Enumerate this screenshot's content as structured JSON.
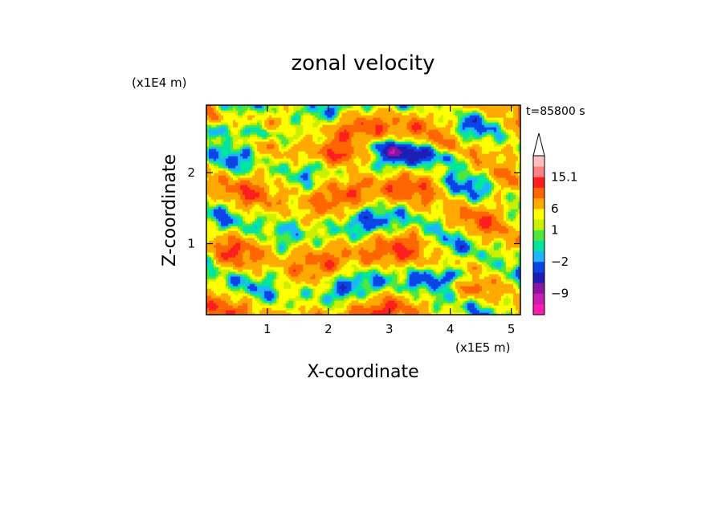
{
  "chart_data": {
    "type": "heatmap",
    "title": "zonal velocity",
    "xlabel": "X-coordinate",
    "ylabel": "Z-coordinate",
    "x_unit": "(x1E5 m)",
    "y_unit": "(x1E4 m)",
    "time_label": "t=85800 s",
    "xlim": [
      0.0,
      5.15
    ],
    "ylim": [
      0.0,
      2.95
    ],
    "x_ticks": [
      1,
      2,
      3,
      4,
      5
    ],
    "x_tick_labels": [
      "1",
      "2",
      "3",
      "4",
      "5"
    ],
    "y_ticks": [
      1,
      2
    ],
    "y_tick_labels": [
      "1",
      "2"
    ],
    "colorbar": {
      "levels": [
        -15,
        -12,
        -9,
        -6,
        -3,
        -2,
        -1,
        0,
        1,
        3,
        6,
        9,
        12,
        15.1
      ],
      "colors": [
        "#ff1ab0",
        "#c81eb4",
        "#8c14a0",
        "#1e1eb4",
        "#0a46e6",
        "#1eb4ff",
        "#00e6a0",
        "#50e640",
        "#c8f000",
        "#ffff00",
        "#ffaa00",
        "#ff6600",
        "#ff1e1e",
        "#ff8080",
        "#ffc0c0"
      ],
      "labeled_values": [
        "15.1",
        "6",
        "1",
        "−2",
        "−9"
      ],
      "extend": "max"
    },
    "grid": false,
    "legend": "colorbar-right"
  }
}
